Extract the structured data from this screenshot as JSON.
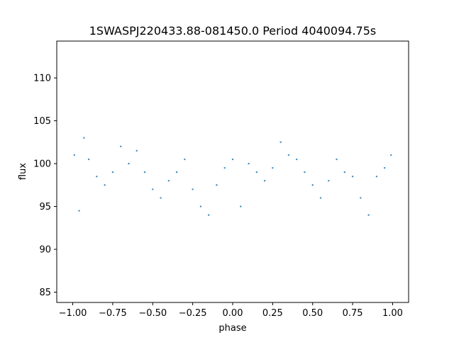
{
  "chart_data": {
    "type": "scatter",
    "title": "1SWASPJ220433.88-081450.0 Period 4040094.75s",
    "xlabel": "phase",
    "ylabel": "flux",
    "xlim": [
      -1.1,
      1.1
    ],
    "ylim": [
      83.8,
      114.3
    ],
    "xticks": [
      -1.0,
      -0.75,
      -0.5,
      -0.25,
      0.0,
      0.25,
      0.5,
      0.75,
      1.0
    ],
    "xtick_labels": [
      "−1.00",
      "−0.75",
      "−0.50",
      "−0.25",
      "0.00",
      "0.25",
      "0.50",
      "0.75",
      "1.00"
    ],
    "yticks": [
      85,
      90,
      95,
      100,
      105,
      110
    ],
    "ytick_labels": [
      "85",
      "90",
      "95",
      "100",
      "105",
      "110"
    ],
    "grid": false,
    "marker_color": "#1f77b4",
    "series": [
      {
        "x": [
          -0.99,
          -0.96,
          -0.93,
          -0.9,
          -0.85,
          -0.8,
          -0.75,
          -0.7,
          -0.65,
          -0.6,
          -0.55,
          -0.5,
          -0.45,
          -0.4,
          -0.35,
          -0.3,
          -0.25,
          -0.2,
          -0.15,
          -0.1,
          -0.05,
          0.0,
          0.05,
          0.1,
          0.15,
          0.2,
          0.25,
          0.3,
          0.35,
          0.4,
          0.45,
          0.5,
          0.55,
          0.6,
          0.65,
          0.7,
          0.75,
          0.8,
          0.85,
          0.9,
          0.95,
          0.99
        ],
        "y": [
          101.0,
          94.5,
          103.0,
          100.5,
          98.5,
          97.5,
          99.0,
          102.0,
          100.0,
          101.5,
          99.0,
          97.0,
          96.0,
          98.0,
          99.0,
          100.5,
          97.0,
          95.0,
          94.0,
          97.5,
          99.5,
          100.5,
          95.0,
          100.0,
          99.0,
          98.0,
          99.5,
          102.5,
          101.0,
          100.5,
          99.0,
          97.5,
          96.0,
          98.0,
          100.5,
          99.0,
          98.5,
          96.0,
          94.0,
          98.5,
          99.5,
          101.0
        ]
      }
    ]
  }
}
